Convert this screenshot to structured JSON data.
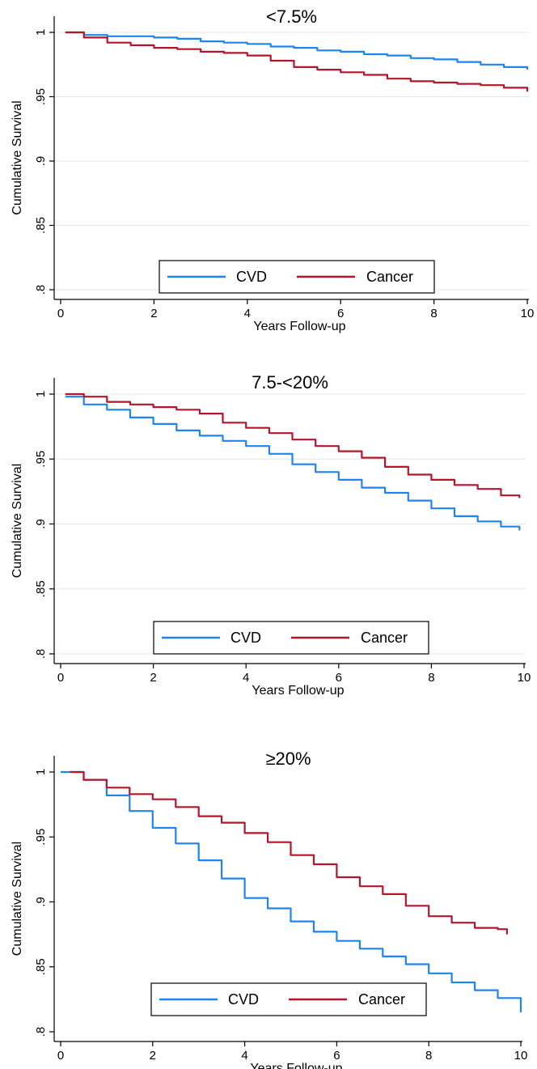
{
  "colors": {
    "cvd": "#1f84ef",
    "cancer": "#b5152b",
    "grid": "#e6e6e6",
    "axis": "#000000"
  },
  "chart_data": [
    {
      "type": "line",
      "title": "<7.5%",
      "xlabel": "Years Follow-up",
      "ylabel": "Cumulative Survival",
      "xlim": [
        0,
        10
      ],
      "ylim": [
        0.8,
        1.0
      ],
      "xticks": [
        "0",
        "2",
        "4",
        "6",
        "8",
        "10"
      ],
      "yticks": [
        ".8",
        ".85",
        ".9",
        ".95",
        "1"
      ],
      "grid": true,
      "legend": {
        "position": "bottom-center",
        "entries": [
          "CVD",
          "Cancer"
        ]
      },
      "series": [
        {
          "name": "CVD",
          "x": [
            0.1,
            0.5,
            1,
            1.5,
            2,
            2.5,
            3,
            3.5,
            4,
            4.5,
            5,
            5.5,
            6,
            6.5,
            7,
            7.5,
            8,
            8.5,
            9,
            9.5,
            10
          ],
          "y": [
            1.0,
            0.998,
            0.997,
            0.997,
            0.996,
            0.995,
            0.993,
            0.992,
            0.991,
            0.989,
            0.988,
            0.986,
            0.985,
            0.983,
            0.982,
            0.98,
            0.979,
            0.977,
            0.975,
            0.973,
            0.971
          ]
        },
        {
          "name": "Cancer",
          "x": [
            0.1,
            0.5,
            1,
            1.5,
            2,
            2.5,
            3,
            3.5,
            4,
            4.5,
            5,
            5.5,
            6,
            6.5,
            7,
            7.5,
            8,
            8.5,
            9,
            9.5,
            10
          ],
          "y": [
            1.0,
            0.996,
            0.992,
            0.99,
            0.988,
            0.987,
            0.985,
            0.984,
            0.982,
            0.978,
            0.973,
            0.971,
            0.969,
            0.967,
            0.964,
            0.962,
            0.961,
            0.96,
            0.959,
            0.957,
            0.954
          ]
        }
      ]
    },
    {
      "type": "line",
      "title": "7.5-<20%",
      "xlabel": "Years Follow-up",
      "ylabel": "Cumulative Survival",
      "xlim": [
        0,
        10
      ],
      "ylim": [
        0.8,
        1.0
      ],
      "xticks": [
        "0",
        "2",
        "4",
        "6",
        "8",
        "10"
      ],
      "yticks": [
        ".8",
        ".85",
        ".9",
        ".95",
        "1"
      ],
      "grid": true,
      "legend": {
        "position": "bottom-center",
        "entries": [
          "CVD",
          "Cancer"
        ]
      },
      "series": [
        {
          "name": "CVD",
          "x": [
            0.1,
            0.5,
            1,
            1.5,
            2,
            2.5,
            3,
            3.5,
            4,
            4.5,
            5,
            5.5,
            6,
            6.5,
            7,
            7.5,
            8,
            8.5,
            9,
            9.5,
            9.9
          ],
          "y": [
            0.998,
            0.992,
            0.988,
            0.982,
            0.977,
            0.972,
            0.968,
            0.964,
            0.96,
            0.954,
            0.946,
            0.94,
            0.934,
            0.928,
            0.924,
            0.918,
            0.912,
            0.906,
            0.902,
            0.898,
            0.895
          ]
        },
        {
          "name": "Cancer",
          "x": [
            0.1,
            0.5,
            1,
            1.5,
            2,
            2.5,
            3,
            3.5,
            4,
            4.5,
            5,
            5.5,
            6,
            6.5,
            7,
            7.5,
            8,
            8.5,
            9,
            9.5,
            9.9
          ],
          "y": [
            1.0,
            0.998,
            0.994,
            0.992,
            0.99,
            0.988,
            0.985,
            0.978,
            0.974,
            0.97,
            0.965,
            0.96,
            0.956,
            0.951,
            0.944,
            0.938,
            0.934,
            0.93,
            0.927,
            0.922,
            0.92
          ]
        }
      ]
    },
    {
      "type": "line",
      "title": "≥20%",
      "xlabel": "Years Follow-up",
      "ylabel": "Cumulative Survival",
      "xlim": [
        0,
        10
      ],
      "ylim": [
        0.8,
        1.0
      ],
      "xticks": [
        "0",
        "2",
        "4",
        "6",
        "8",
        "10"
      ],
      "yticks": [
        ".8",
        ".85",
        ".9",
        ".95",
        "1"
      ],
      "grid": false,
      "legend": {
        "position": "bottom-center",
        "entries": [
          "CVD",
          "Cancer"
        ]
      },
      "series": [
        {
          "name": "CVD",
          "x": [
            0,
            0.5,
            1,
            1.5,
            2,
            2.5,
            3,
            3.5,
            4,
            4.5,
            5,
            5.5,
            6,
            6.5,
            7,
            7.5,
            8,
            8.5,
            9,
            9.5,
            10
          ],
          "y": [
            1.0,
            0.994,
            0.982,
            0.97,
            0.957,
            0.945,
            0.932,
            0.918,
            0.903,
            0.895,
            0.885,
            0.877,
            0.87,
            0.864,
            0.858,
            0.852,
            0.845,
            0.838,
            0.832,
            0.826,
            0.815
          ]
        },
        {
          "name": "Cancer",
          "x": [
            0.2,
            0.5,
            1,
            1.5,
            2,
            2.5,
            3,
            3.5,
            4,
            4.5,
            5,
            5.5,
            6,
            6.5,
            7,
            7.5,
            8,
            8.5,
            9,
            9.5,
            9.7
          ],
          "y": [
            1.0,
            0.994,
            0.988,
            0.983,
            0.979,
            0.973,
            0.966,
            0.961,
            0.953,
            0.946,
            0.936,
            0.929,
            0.919,
            0.912,
            0.906,
            0.897,
            0.889,
            0.884,
            0.88,
            0.879,
            0.875
          ]
        }
      ]
    }
  ]
}
